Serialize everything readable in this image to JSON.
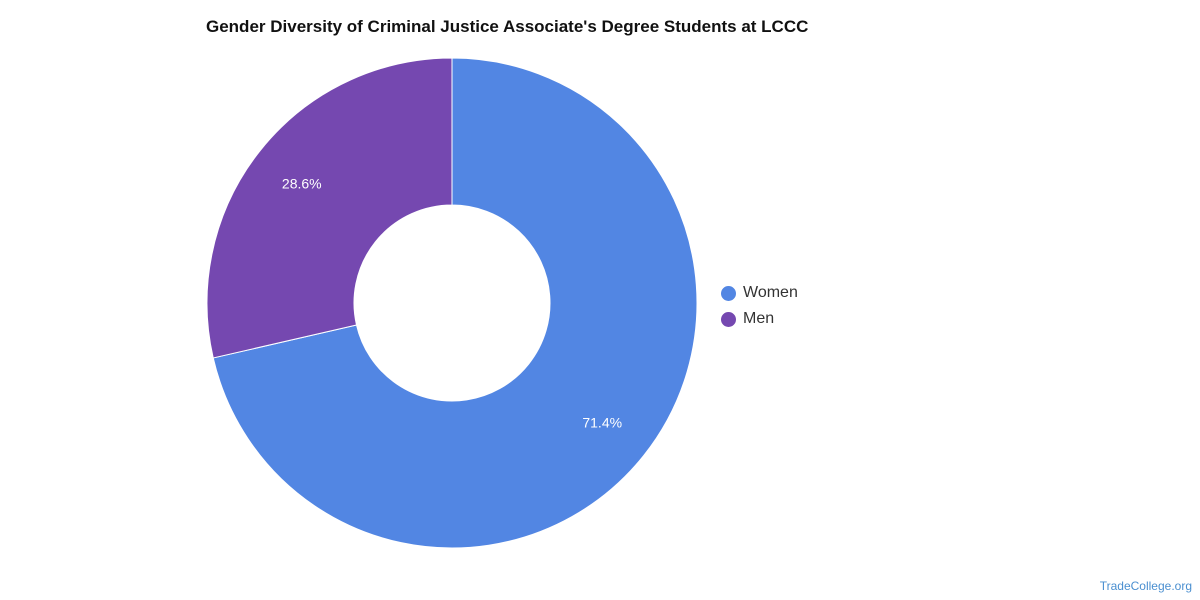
{
  "chart_data": {
    "type": "pie",
    "title": "Gender Diversity of Criminal Justice Associate's Degree Students at LCCC",
    "donut": true,
    "categories": [
      "Women",
      "Men"
    ],
    "values": [
      71.4,
      28.6
    ],
    "data_labels": [
      "71.4%",
      "28.6%"
    ],
    "colors": [
      "#5286e3",
      "#7548b0"
    ],
    "legend_position": "right"
  },
  "credit": "TradeCollege.org"
}
